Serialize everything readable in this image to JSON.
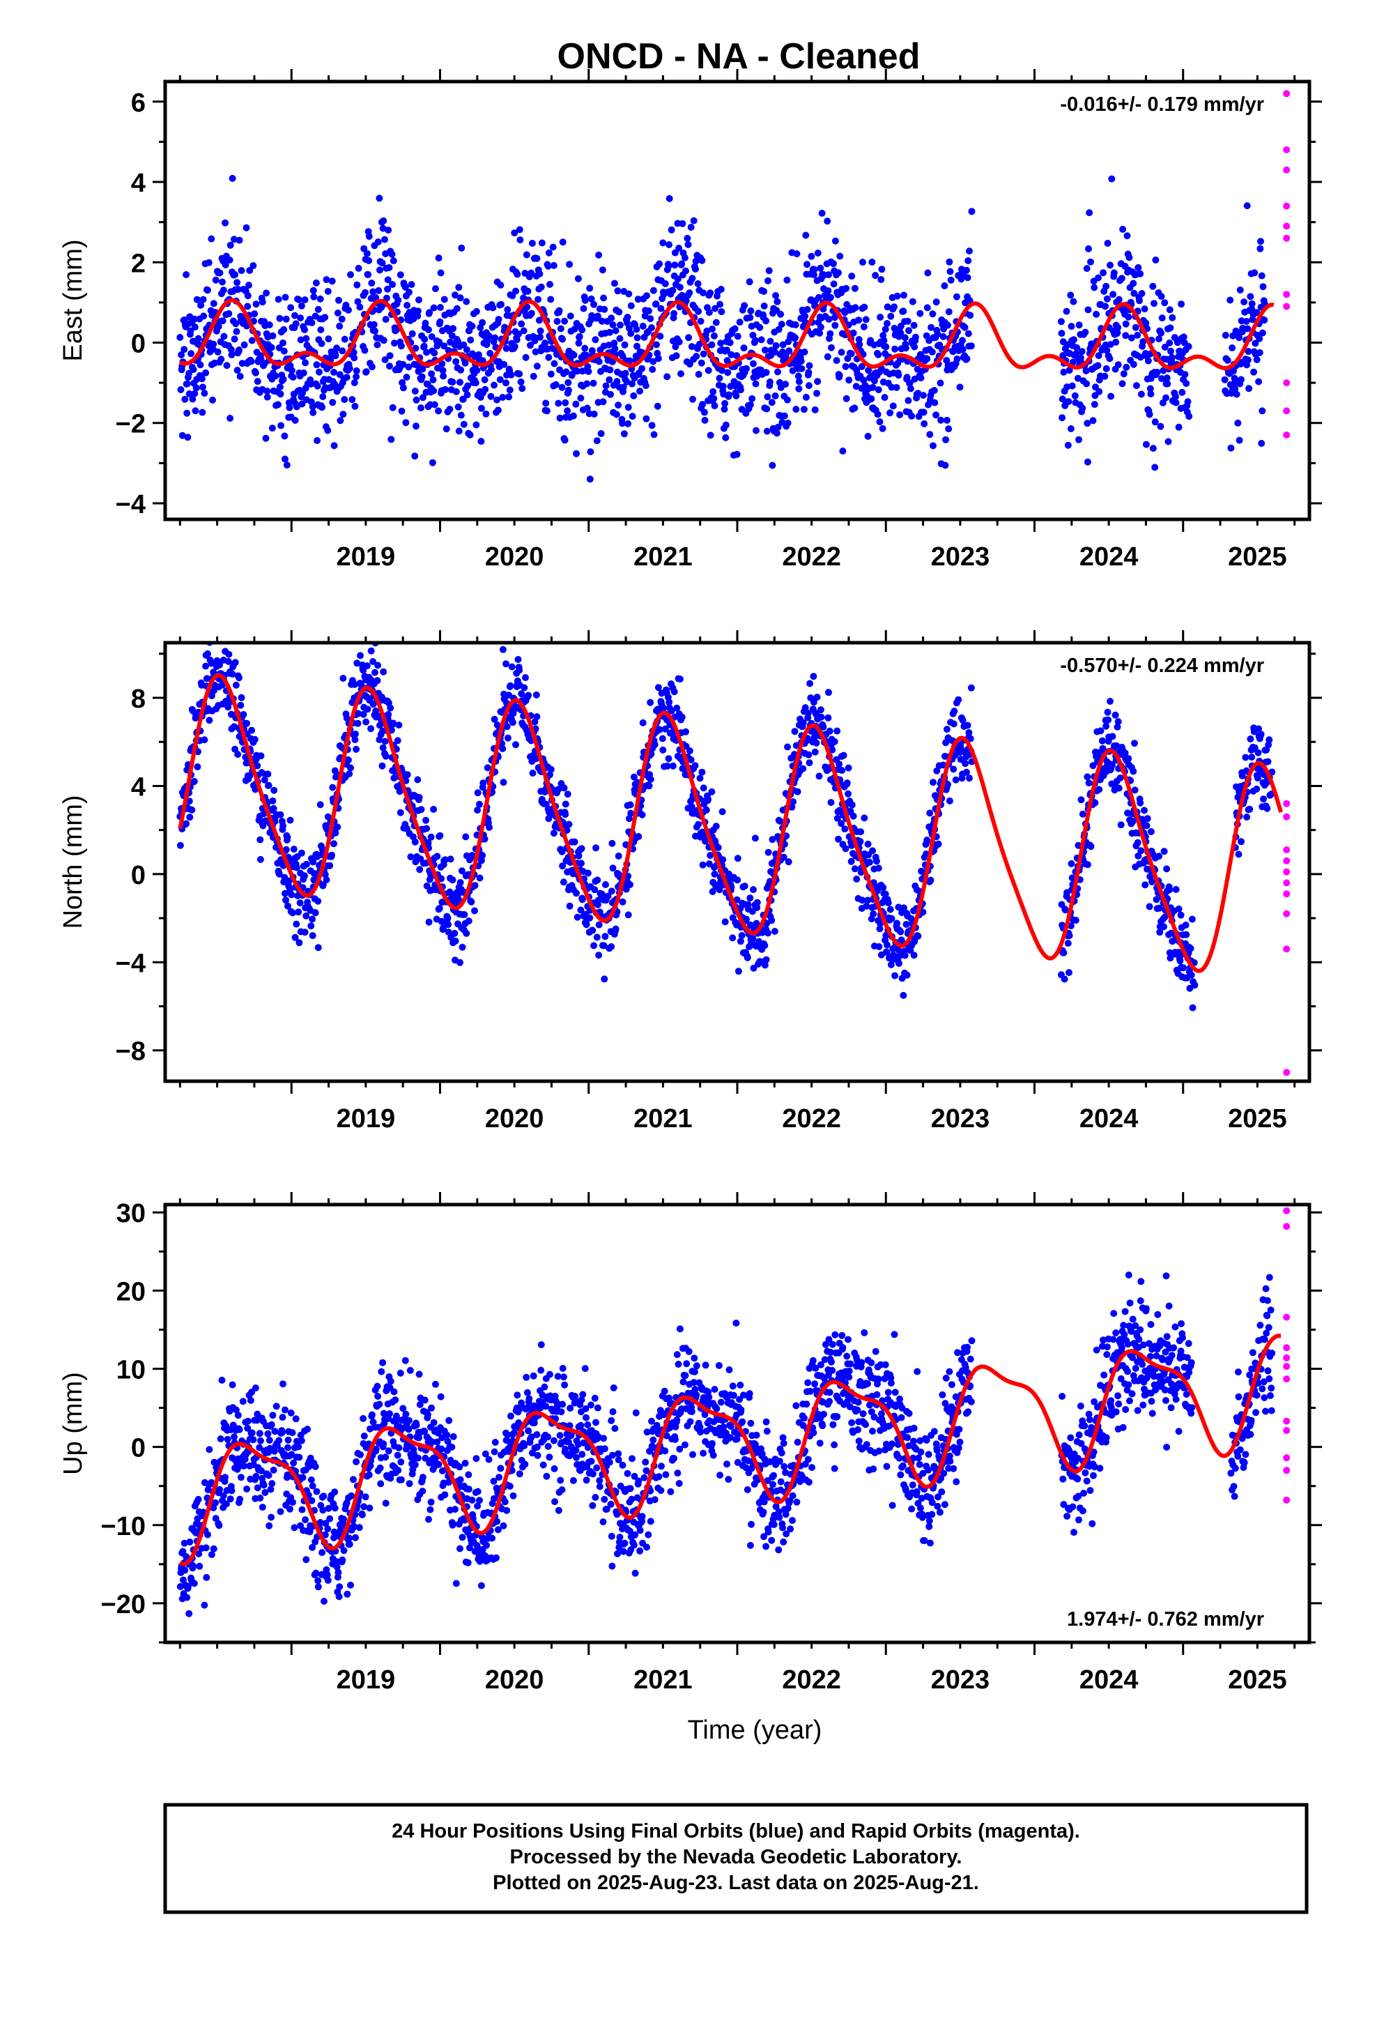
{
  "colors": {
    "final_points": "#0000ff",
    "rapid_points": "#ff00ff",
    "model_fit": "#ff0000",
    "frame": "#000000"
  },
  "footer": {
    "lines": [
      "24 Hour Positions Using Final Orbits (blue) and Rapid Orbits (magenta).",
      "Processed by the Nevada Geodetic Laboratory.",
      "Plotted on 2025-Aug-23. Last data on 2025-Aug-21."
    ]
  },
  "chart_data": [
    {
      "type": "scatter",
      "title": "ONCD  - NA - Cleaned",
      "xlabel": "",
      "ylabel": "East (mm)",
      "xlim": [
        2018.15,
        2025.85
      ],
      "ylim": [
        -4.4,
        6.5
      ],
      "xticks": [
        2019,
        2020,
        2021,
        2022,
        2023,
        2024,
        2025
      ],
      "yticks": [
        -4,
        -2,
        0,
        2,
        4,
        6
      ],
      "rate_annotation": "-0.016+/- 0.179 mm/yr",
      "rate_position": "top-right",
      "grid": false,
      "model": {
        "mean": -0.05,
        "trend": -0.016,
        "annual_amp": 0.65,
        "annual_peak": 0.6,
        "semiannual_amp": 0.4,
        "semiannual_peak": 0.1
      },
      "final_series": {
        "start": 2018.25,
        "end": 2025.55,
        "scatter": 0.95,
        "gaps": [
          [
            2023.58,
            2024.18
          ],
          [
            2025.04,
            2025.28
          ]
        ]
      },
      "rapid_values": [
        6.2,
        4.8,
        4.3,
        3.4,
        2.9,
        2.6,
        1.2,
        0.9,
        -1.0,
        -1.7,
        -2.3
      ]
    },
    {
      "type": "scatter",
      "title": "",
      "xlabel": "",
      "ylabel": "North (mm)",
      "xlim": [
        2018.15,
        2025.85
      ],
      "ylim": [
        -9.4,
        10.5
      ],
      "xticks": [
        2019,
        2020,
        2021,
        2022,
        2023,
        2024,
        2025
      ],
      "yticks": [
        -8,
        -4,
        0,
        4,
        8
      ],
      "rate_annotation": "-0.570+/- 0.224 mm/yr",
      "rate_position": "top-right",
      "grid": false,
      "model": {
        "mean": 2.0,
        "trend": -0.57,
        "annual_amp": 4.6,
        "annual_peak": 0.55,
        "semiannual_amp": 0.8,
        "semiannual_peak": 0.45
      },
      "final_series": {
        "start": 2018.25,
        "end": 2025.6,
        "scatter": 1.0,
        "gaps": [
          [
            2023.58,
            2024.18
          ],
          [
            2025.08,
            2025.35
          ]
        ]
      },
      "rapid_values": [
        3.2,
        2.6,
        1.1,
        0.6,
        0.1,
        -0.4,
        -0.9,
        -1.8,
        -3.4,
        -9.0
      ]
    },
    {
      "type": "scatter",
      "title": "",
      "xlabel": "Time (year)",
      "ylabel": "Up (mm)",
      "xlim": [
        2018.15,
        2025.85
      ],
      "ylim": [
        -25,
        31
      ],
      "xticks": [
        2019,
        2020,
        2021,
        2022,
        2023,
        2024,
        2025
      ],
      "yticks": [
        -20,
        -10,
        0,
        10,
        20,
        30
      ],
      "rate_annotation": "1.974+/- 0.762 mm/yr",
      "rate_position": "bottom-right",
      "grid": false,
      "model": {
        "mean": 1.0,
        "trend": 1.974,
        "annual_amp": 6.6,
        "annual_peak": 0.75,
        "semiannual_amp": 2.2,
        "semiannual_peak": 0.05
      },
      "final_series": {
        "start": 2018.25,
        "end": 2025.6,
        "scatter": 3.6,
        "gaps": [
          [
            2023.58,
            2024.18
          ],
          [
            2025.06,
            2025.32
          ]
        ]
      },
      "rapid_values": [
        30.2,
        28.2,
        16.6,
        12.7,
        11.4,
        10.3,
        8.7,
        3.3,
        2.1,
        -1.4,
        -3.0,
        -6.8
      ]
    }
  ]
}
